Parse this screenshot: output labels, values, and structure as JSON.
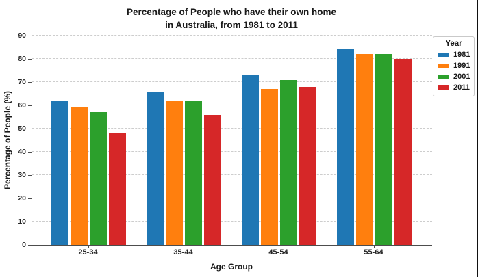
{
  "chart_data": {
    "type": "bar",
    "title_line1": "Percentage of People who have their own home",
    "title_line2": "in Australia, from 1981 to 2011",
    "xlabel": "Age Group",
    "ylabel": "Percentage of People (%)",
    "categories": [
      "25-34",
      "35-44",
      "45-54",
      "55-64"
    ],
    "series": [
      {
        "name": "1981",
        "color": "#1f77b4",
        "values": [
          62,
          66,
          73,
          84
        ]
      },
      {
        "name": "1991",
        "color": "#ff7f0e",
        "values": [
          59,
          62,
          67,
          82
        ]
      },
      {
        "name": "2001",
        "color": "#2ca02c",
        "values": [
          57,
          62,
          71,
          82
        ]
      },
      {
        "name": "2011",
        "color": "#d62728",
        "values": [
          48,
          56,
          68,
          80
        ]
      }
    ],
    "ylim": [
      0,
      90
    ],
    "yticks": [
      0,
      10,
      20,
      30,
      40,
      50,
      60,
      70,
      80,
      90
    ],
    "grid": "horizontal-dashed",
    "legend_title": "Year",
    "legend_position": "right-outside"
  }
}
